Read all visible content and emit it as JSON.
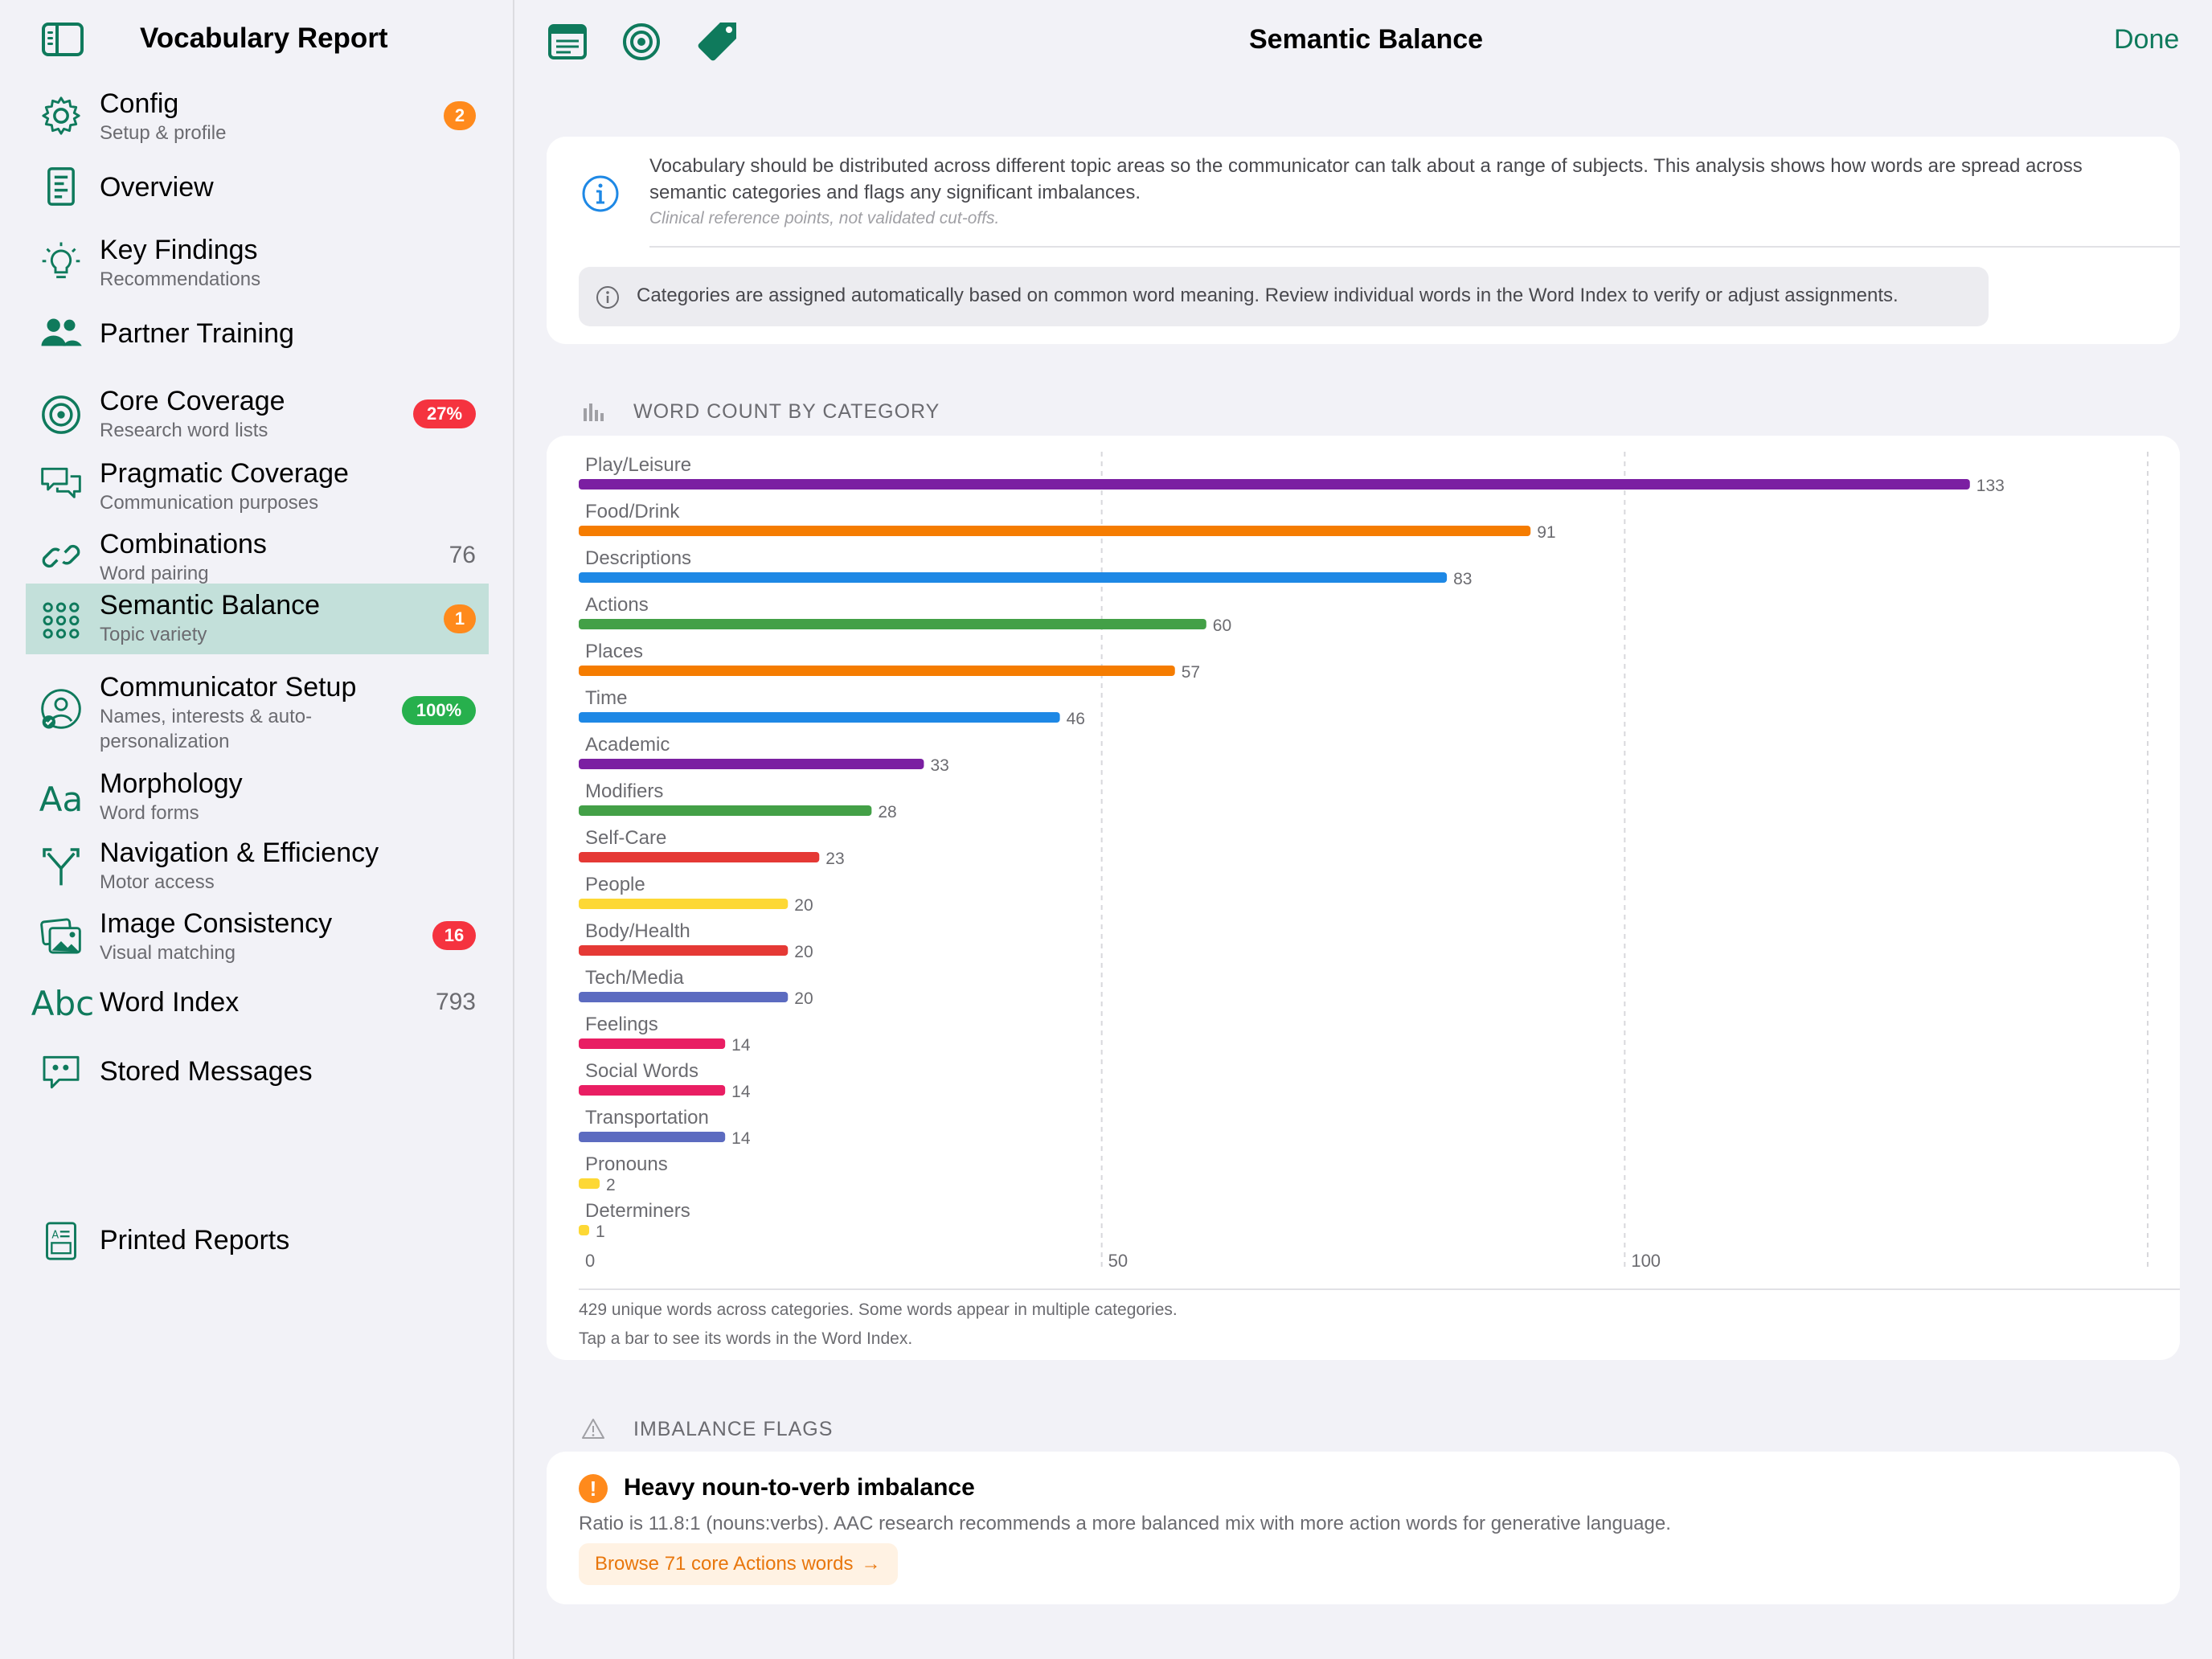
{
  "sidebar": {
    "title": "Vocabulary Report",
    "items": [
      {
        "id": "config",
        "label": "Config",
        "sub": "Setup & profile",
        "badge": "2",
        "badge_color": "#ff8a1c",
        "icon": "gear-icon"
      },
      {
        "id": "overview",
        "label": "Overview",
        "icon": "document-icon"
      },
      {
        "id": "key-findings",
        "label": "Key Findings",
        "sub": "Recommendations",
        "icon": "lightbulb-icon"
      },
      {
        "id": "partner-training",
        "label": "Partner Training",
        "icon": "people-icon"
      },
      {
        "id": "core-coverage",
        "label": "Core Coverage",
        "sub": "Research word lists",
        "badge": "27%",
        "badge_color": "#f5333f",
        "icon": "target-icon"
      },
      {
        "id": "pragmatic-coverage",
        "label": "Pragmatic Coverage",
        "sub": "Communication purposes",
        "icon": "chat-bubbles-icon"
      },
      {
        "id": "combinations",
        "label": "Combinations",
        "sub": "Word pairing",
        "count": "76",
        "icon": "link-icon"
      },
      {
        "id": "semantic-balance",
        "label": "Semantic Balance",
        "sub": "Topic variety",
        "badge": "1",
        "badge_color": "#ff8a1c",
        "icon": "grid-dots-icon",
        "active": true
      },
      {
        "id": "communicator-setup",
        "label": "Communicator Setup",
        "sub": "Names, interests & auto-personalization",
        "badge": "100%",
        "badge_color": "#27b04d",
        "icon": "person-check-icon"
      },
      {
        "id": "morphology",
        "label": "Morphology",
        "sub": "Word forms",
        "icon": "text-aa-icon"
      },
      {
        "id": "navigation",
        "label": "Navigation & Efficiency",
        "sub": "Motor access",
        "icon": "branch-arrow-icon"
      },
      {
        "id": "image-consistency",
        "label": "Image Consistency",
        "sub": "Visual matching",
        "badge": "16",
        "badge_color": "#f5333f",
        "icon": "photos-icon"
      },
      {
        "id": "word-index",
        "label": "Word Index",
        "count": "793",
        "icon": "text-abc-icon"
      },
      {
        "id": "stored-messages",
        "label": "Stored Messages",
        "icon": "quote-bubble-icon"
      }
    ],
    "printed_reports": "Printed Reports",
    "accent": "#0f7a5c"
  },
  "header": {
    "title": "Semantic Balance",
    "done": "Done"
  },
  "info": {
    "text": "Vocabulary should be distributed across different topic areas so the communicator can talk about a range of subjects. This analysis shows how words are spread across semantic categories and flags any significant imbalances.",
    "note": "Clinical reference points, not validated cut-offs.",
    "pill": "Categories are assigned automatically based on common word meaning. Review individual words in the Word Index to verify or adjust assignments."
  },
  "word_count_header": "WORD COUNT BY CATEGORY",
  "chart_data": {
    "type": "bar",
    "orientation": "horizontal",
    "categories": [
      "Play/Leisure",
      "Food/Drink",
      "Descriptions",
      "Actions",
      "Places",
      "Time",
      "Academic",
      "Modifiers",
      "Self-Care",
      "People",
      "Body/Health",
      "Tech/Media",
      "Feelings",
      "Social Words",
      "Transportation",
      "Pronouns",
      "Determiners"
    ],
    "values": [
      133,
      91,
      83,
      60,
      57,
      46,
      33,
      28,
      23,
      20,
      20,
      20,
      14,
      14,
      14,
      2,
      1
    ],
    "colors": [
      "#7b1fa2",
      "#f57c00",
      "#1e88e5",
      "#43a047",
      "#f57c00",
      "#1e88e5",
      "#7b1fa2",
      "#43a047",
      "#e53935",
      "#fdd835",
      "#e53935",
      "#5c6bc0",
      "#e91e63",
      "#e91e63",
      "#5c6bc0",
      "#fdd835",
      "#fdd835"
    ],
    "x_ticks": [
      0,
      50,
      100
    ],
    "xlim": [
      0,
      150
    ],
    "grid": true
  },
  "chart_footer": {
    "line1": "429 unique words across categories. Some words appear in multiple categories.",
    "line2": "Tap a bar to see its words in the Word Index."
  },
  "imbalance_header": "IMBALANCE FLAGS",
  "flag": {
    "title": "Heavy noun-to-verb imbalance",
    "desc": "Ratio is 11.8:1 (nouns:verbs). AAC research recommends a more balanced mix with more action words for generative language.",
    "button": "Browse 71 core Actions words",
    "arrow": "→"
  }
}
